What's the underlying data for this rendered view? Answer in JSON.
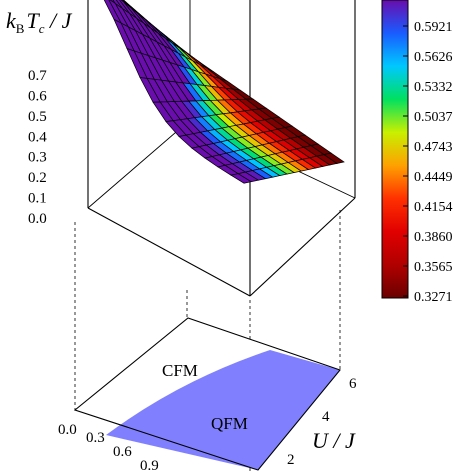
{
  "chart_data": {
    "type": "surface",
    "z_label": {
      "k": "k",
      "sub": "B",
      "T": "T",
      "c": "c",
      "tail": " / J"
    },
    "z_ticks": [
      "0.0",
      "0.1",
      "0.2",
      "0.3",
      "0.4",
      "0.5",
      "0.6",
      "0.7"
    ],
    "zlim": [
      0,
      0.7
    ],
    "colorbar": {
      "labels": [
        "0.5921",
        "0.5626",
        "0.5332",
        "0.5037",
        "0.4743",
        "0.4449",
        "0.4154",
        "0.3860",
        "0.3565",
        "0.3271"
      ],
      "colors": [
        "#6a0dad",
        "#1a5cff",
        "#00c8ff",
        "#00e060",
        "#c8f000",
        "#ffa000",
        "#ff3000",
        "#e00000",
        "#b00000",
        "#6a0000"
      ]
    },
    "base_axis": {
      "label": "U / J",
      "u_ticks": [
        "2",
        "4",
        "6"
      ],
      "t_ticks": [
        "0.0",
        "0.3",
        "0.6",
        "0.9"
      ]
    },
    "regions": {
      "upper": "CFM",
      "lower": "QFM",
      "lower_color": "#8080ff"
    }
  }
}
